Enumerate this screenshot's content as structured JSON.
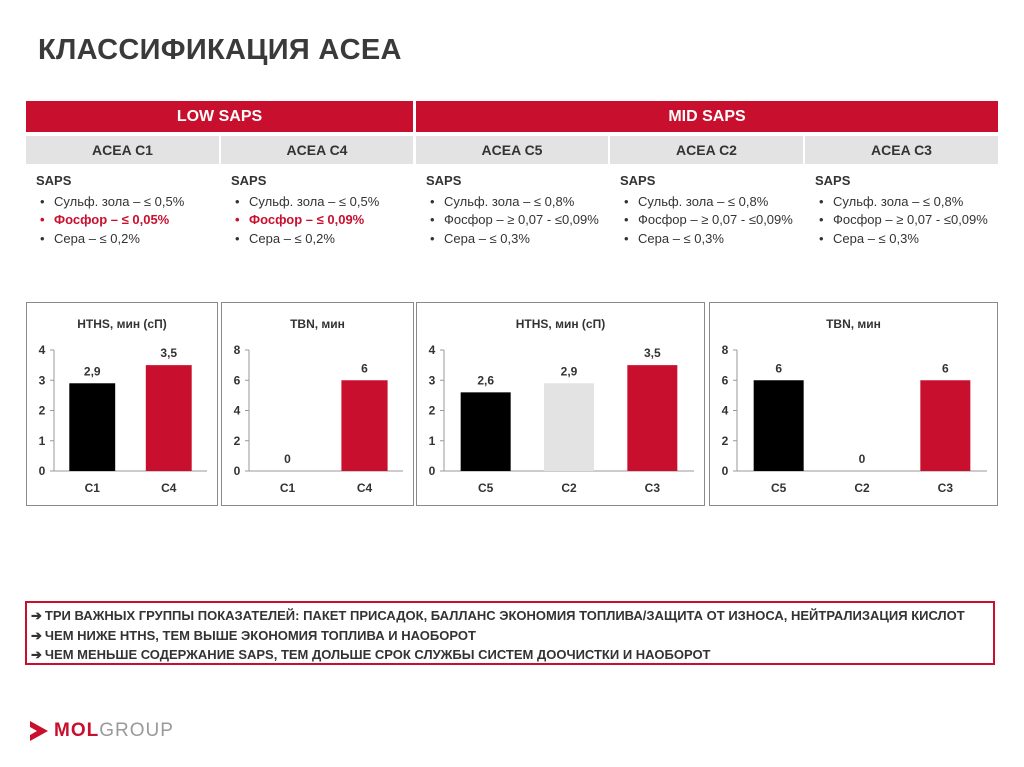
{
  "title": "КЛАССИФИКАЦИЯ ACEA",
  "groups": [
    {
      "label": "LOW SAPS"
    },
    {
      "label": "MID SAPS"
    }
  ],
  "standards": [
    {
      "label": "ACEA C1",
      "saps": "SAPS",
      "items": [
        {
          "text": "Сульф. зола – ≤ 0,5%",
          "hl": false
        },
        {
          "text": "Фосфор – ≤ 0,05%",
          "hl": true
        },
        {
          "text": "Сера – ≤ 0,2%",
          "hl": false
        }
      ]
    },
    {
      "label": "ACEA C4",
      "saps": "SAPS",
      "items": [
        {
          "text": "Сульф. зола – ≤ 0,5%",
          "hl": false
        },
        {
          "text": "Фосфор – ≤ 0,09%",
          "hl": true
        },
        {
          "text": "Сера – ≤ 0,2%",
          "hl": false
        }
      ]
    },
    {
      "label": "ACEA C5",
      "saps": "SAPS",
      "items": [
        {
          "text": "Сульф. зола – ≤ 0,8%",
          "hl": false
        },
        {
          "text": "Фосфор – ≥ 0,07 - ≤0,09%",
          "hl": false
        },
        {
          "text": "Сера – ≤ 0,3%",
          "hl": false
        }
      ]
    },
    {
      "label": "ACEA C2",
      "saps": "SAPS",
      "items": [
        {
          "text": "Сульф. зола – ≤ 0,8%",
          "hl": false
        },
        {
          "text": "Фосфор – ≥ 0,07 - ≤0,09%",
          "hl": false
        },
        {
          "text": "Сера – ≤ 0,3%",
          "hl": false
        }
      ]
    },
    {
      "label": "ACEA C3",
      "saps": "SAPS",
      "items": [
        {
          "text": "Сульф. зола – ≤ 0,8%",
          "hl": false
        },
        {
          "text": "Фосфор – ≥ 0,07 - ≤0,09%",
          "hl": false
        },
        {
          "text": "Сера – ≤ 0,3%",
          "hl": false
        }
      ]
    }
  ],
  "colors": {
    "red": "#c8102e",
    "black": "#000000",
    "light_gray": "#e3e3e3",
    "white": "#ffffff"
  },
  "chart_data": [
    {
      "type": "bar",
      "title": "HTHS, мин (сП)",
      "categories": [
        "C1",
        "C4"
      ],
      "values": [
        2.9,
        3.5
      ],
      "data_labels": [
        "2,9",
        "3,5"
      ],
      "colors": [
        "#000000",
        "#c8102e"
      ],
      "ylim": [
        0,
        4
      ],
      "yticks": [
        0,
        1,
        2,
        3,
        4
      ],
      "grid": false
    },
    {
      "type": "bar",
      "title": "TBN, мин",
      "categories": [
        "C1",
        "C4"
      ],
      "values": [
        0,
        6
      ],
      "data_labels": [
        "0",
        "6"
      ],
      "colors": [
        "#000000",
        "#c8102e"
      ],
      "ylim": [
        0,
        8
      ],
      "yticks": [
        0,
        2,
        4,
        6,
        8
      ],
      "grid": false
    },
    {
      "type": "bar",
      "title": "HTHS, мин (сП)",
      "categories": [
        "C5",
        "C2",
        "C3"
      ],
      "values": [
        2.6,
        2.9,
        3.5
      ],
      "data_labels": [
        "2,6",
        "2,9",
        "3,5"
      ],
      "colors": [
        "#000000",
        "#e3e3e3",
        "#c8102e"
      ],
      "ylim": [
        0,
        4
      ],
      "yticks": [
        0,
        1,
        2,
        3,
        4
      ],
      "grid": false
    },
    {
      "type": "bar",
      "title": "TBN, мин",
      "categories": [
        "C5",
        "C2",
        "C3"
      ],
      "values": [
        6,
        0,
        6
      ],
      "data_labels": [
        "6",
        "0",
        "6"
      ],
      "colors": [
        "#000000",
        "#e3e3e3",
        "#c8102e"
      ],
      "ylim": [
        0,
        8
      ],
      "yticks": [
        0,
        2,
        4,
        6,
        8
      ],
      "grid": false
    }
  ],
  "notes": [
    {
      "arrow": "➔",
      "text": "ТРИ ВАЖНЫХ ГРУППЫ ПОКАЗАТЕЛЕЙ: ПАКЕТ ПРИСАДОК, БАЛЛАНС ЭКОНОМИЯ ТОПЛИВА/ЗАЩИТА ОТ ИЗНОСА, НЕЙТРАЛИЗАЦИЯ КИСЛОТ"
    },
    {
      "arrow": "➔",
      "text": "ЧЕМ НИЖЕ HTHS, ТЕМ ВЫШЕ ЭКОНОМИЯ ТОПЛИВА И НАОБОРОТ"
    },
    {
      "arrow": "➔",
      "text": "ЧЕМ МЕНЬШЕ СОДЕРЖАНИЕ SAPS, ТЕМ ДОЛЬШЕ СРОК СЛУЖБЫ СИСТЕМ ДООЧИСТКИ И НАОБОРОТ"
    }
  ],
  "logo": {
    "mol": "MOL",
    "group": "GROUP"
  }
}
